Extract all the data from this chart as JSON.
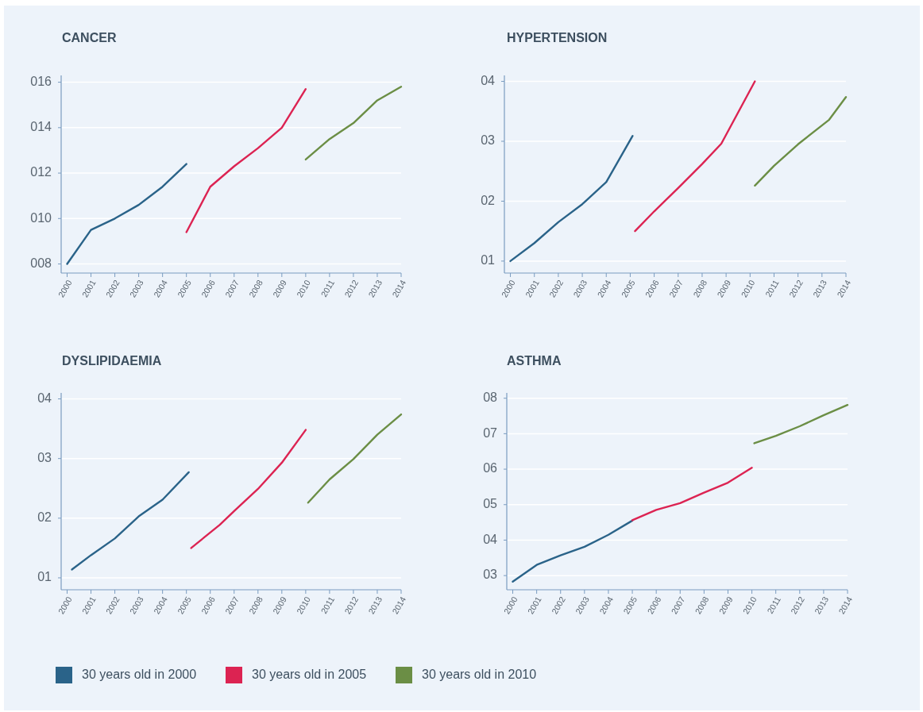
{
  "chart_data": [
    {
      "type": "line",
      "title": "CANCER",
      "xlim": [
        1999.75,
        2014
      ],
      "xticks": [
        2000,
        2001,
        2002,
        2003,
        2004,
        2005,
        2006,
        2007,
        2008,
        2009,
        2010,
        2011,
        2012,
        2013,
        2014
      ],
      "ylim": [
        7.6,
        16.3
      ],
      "yticks": [
        {
          "value": 8,
          "label": "008"
        },
        {
          "value": 10,
          "label": "010"
        },
        {
          "value": 12,
          "label": "012"
        },
        {
          "value": 14,
          "label": "014"
        },
        {
          "value": 16,
          "label": "016"
        }
      ],
      "grid": "y",
      "legend": "bottom",
      "series": [
        {
          "name": "30 years old in 2000",
          "color": "#2a6389",
          "x": [
            2000,
            2001,
            2002,
            2003,
            2004,
            2005
          ],
          "values": [
            8.0,
            9.5,
            10.0,
            10.6,
            11.4,
            12.4
          ]
        },
        {
          "name": "30 years old in 2005",
          "color": "#dc2352",
          "x": [
            2005,
            2006,
            2007,
            2008,
            2009,
            2010
          ],
          "values": [
            9.4,
            11.4,
            12.3,
            13.1,
            14.0,
            15.7
          ]
        },
        {
          "name": "30 years old in 2010",
          "color": "#6b8e45",
          "x": [
            2010,
            2011,
            2012,
            2013,
            2014
          ],
          "values": [
            12.6,
            13.5,
            14.2,
            15.2,
            15.8
          ]
        }
      ]
    },
    {
      "type": "line",
      "title": "HYPERTENSION",
      "xlim": [
        1999.75,
        2014
      ],
      "xticks": [
        2000,
        2001,
        2002,
        2003,
        2004,
        2005,
        2006,
        2007,
        2008,
        2009,
        2010,
        2011,
        2012,
        2013,
        2014
      ],
      "ylim": [
        0.8,
        4.1
      ],
      "yticks": [
        {
          "value": 1,
          "label": "01"
        },
        {
          "value": 2,
          "label": "02"
        },
        {
          "value": 3,
          "label": "03"
        },
        {
          "value": 4,
          "label": "04"
        }
      ],
      "grid": "y",
      "series": [
        {
          "color": "#2a6389",
          "x": [
            2000,
            2001,
            2002,
            2003,
            2004,
            2005.1
          ],
          "values": [
            1.0,
            1.3,
            1.65,
            1.95,
            2.32,
            3.09
          ]
        },
        {
          "color": "#dc2352",
          "x": [
            2005.2,
            2006,
            2007,
            2008,
            2008.8,
            2010.2
          ],
          "values": [
            1.5,
            1.83,
            2.22,
            2.62,
            2.96,
            4.0
          ]
        },
        {
          "color": "#6b8e45",
          "x": [
            2010.2,
            2011,
            2012,
            2013.3,
            2014
          ],
          "values": [
            2.26,
            2.59,
            2.95,
            3.36,
            3.74
          ]
        }
      ]
    },
    {
      "type": "line",
      "title": "DYSLIPIDAEMIA",
      "xlim": [
        1999.75,
        2014
      ],
      "xticks": [
        2000,
        2001,
        2002,
        2003,
        2004,
        2005,
        2006,
        2007,
        2008,
        2009,
        2010,
        2011,
        2012,
        2013,
        2014
      ],
      "ylim": [
        0.8,
        4.1
      ],
      "yticks": [
        {
          "value": 1,
          "label": "01"
        },
        {
          "value": 2,
          "label": "02"
        },
        {
          "value": 3,
          "label": "03"
        },
        {
          "value": 4,
          "label": "04"
        }
      ],
      "grid": "y",
      "series": [
        {
          "color": "#2a6389",
          "x": [
            2000.2,
            2001,
            2002,
            2003,
            2004,
            2005.1
          ],
          "values": [
            1.14,
            1.38,
            1.66,
            2.03,
            2.31,
            2.77
          ]
        },
        {
          "color": "#dc2352",
          "x": [
            2005.2,
            2006.4,
            2007,
            2008,
            2009,
            2010
          ],
          "values": [
            1.5,
            1.89,
            2.12,
            2.49,
            2.93,
            3.48
          ]
        },
        {
          "color": "#6b8e45",
          "x": [
            2010.1,
            2011,
            2012,
            2013,
            2014
          ],
          "values": [
            2.26,
            2.65,
            2.99,
            3.4,
            3.74
          ]
        }
      ]
    },
    {
      "type": "line",
      "title": "ASTHMA",
      "xlim": [
        1999.75,
        2014
      ],
      "xticks": [
        2000,
        2001,
        2002,
        2003,
        2004,
        2005,
        2006,
        2007,
        2008,
        2009,
        2010,
        2011,
        2012,
        2013,
        2014
      ],
      "ylim": [
        2.6,
        8.15
      ],
      "yticks": [
        {
          "value": 3,
          "label": "03"
        },
        {
          "value": 4,
          "label": "04"
        },
        {
          "value": 5,
          "label": "05"
        },
        {
          "value": 6,
          "label": "06"
        },
        {
          "value": 7,
          "label": "07"
        },
        {
          "value": 8,
          "label": "08"
        }
      ],
      "grid": "y",
      "series": [
        {
          "color": "#2a6389",
          "x": [
            2000,
            2001,
            2002,
            2003,
            2004,
            2005
          ],
          "values": [
            2.83,
            3.3,
            3.57,
            3.81,
            4.15,
            4.55
          ]
        },
        {
          "color": "#dc2352",
          "x": [
            2005,
            2006,
            2007,
            2008,
            2009,
            2010
          ],
          "values": [
            4.56,
            4.85,
            5.04,
            5.34,
            5.62,
            6.04
          ]
        },
        {
          "color": "#6b8e45",
          "x": [
            2010.1,
            2011,
            2012,
            2013,
            2014
          ],
          "values": [
            6.73,
            6.94,
            7.21,
            7.52,
            7.81
          ]
        }
      ]
    }
  ]
}
